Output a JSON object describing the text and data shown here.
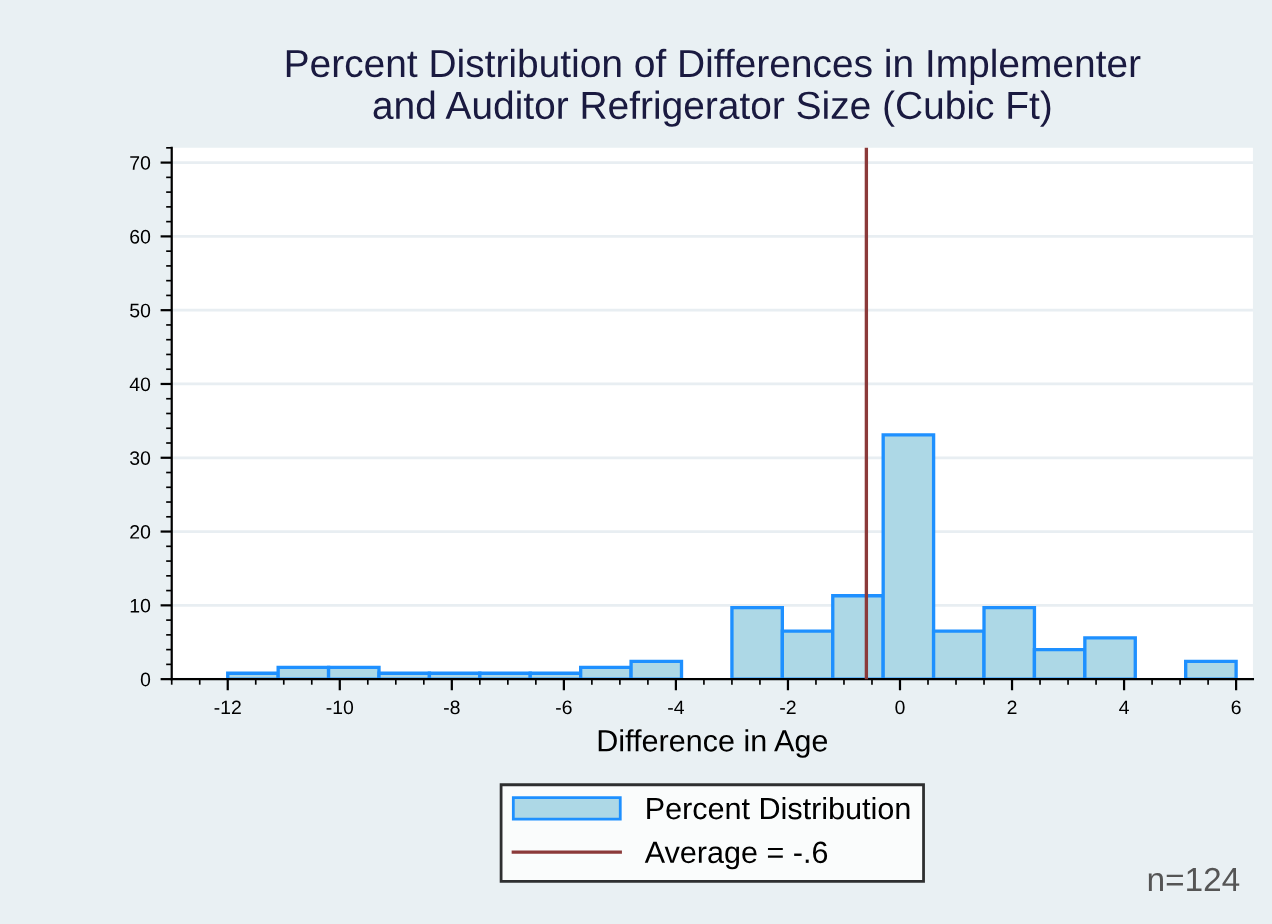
{
  "chart_data": {
    "type": "histogram",
    "title": "Percent Distribution of Differences in Implementer\nand Auditor Refrigerator Size (Cubic Ft)",
    "xlabel": "Difference in Age",
    "bins": [
      -12,
      -11.1,
      -10.2,
      -9.3,
      -8.4,
      -7.5,
      -6.6,
      -5.7,
      -4.8,
      -3.9,
      -3.0,
      -2.1,
      -1.2,
      -0.3,
      0.6,
      1.5,
      2.4,
      3.3,
      4.2,
      5.1,
      6.0
    ],
    "series": [
      {
        "name": "Percent Distribution",
        "color": "#add8e6",
        "values": [
          0.8,
          1.6,
          1.6,
          0.8,
          0.8,
          0.8,
          0.8,
          1.6,
          2.4,
          0,
          9.7,
          6.5,
          11.3,
          33.1,
          6.5,
          9.7,
          4.0,
          5.6,
          0,
          2.4
        ]
      }
    ],
    "ref_lines": [
      {
        "axis": "x",
        "value": -0.6,
        "label": "Average = -.6",
        "color": "#8b3a3a"
      }
    ],
    "annotations": [
      "n=124"
    ],
    "xlim": [
      -13,
      6.3
    ],
    "ylim": [
      0,
      72
    ],
    "xticks": [
      -12,
      -10,
      -8,
      -6,
      -4,
      -2,
      0,
      2,
      4,
      6
    ],
    "yticks": [
      0,
      10,
      20,
      30,
      40,
      50,
      60,
      70
    ],
    "grid": "y",
    "legend": "bottom"
  }
}
